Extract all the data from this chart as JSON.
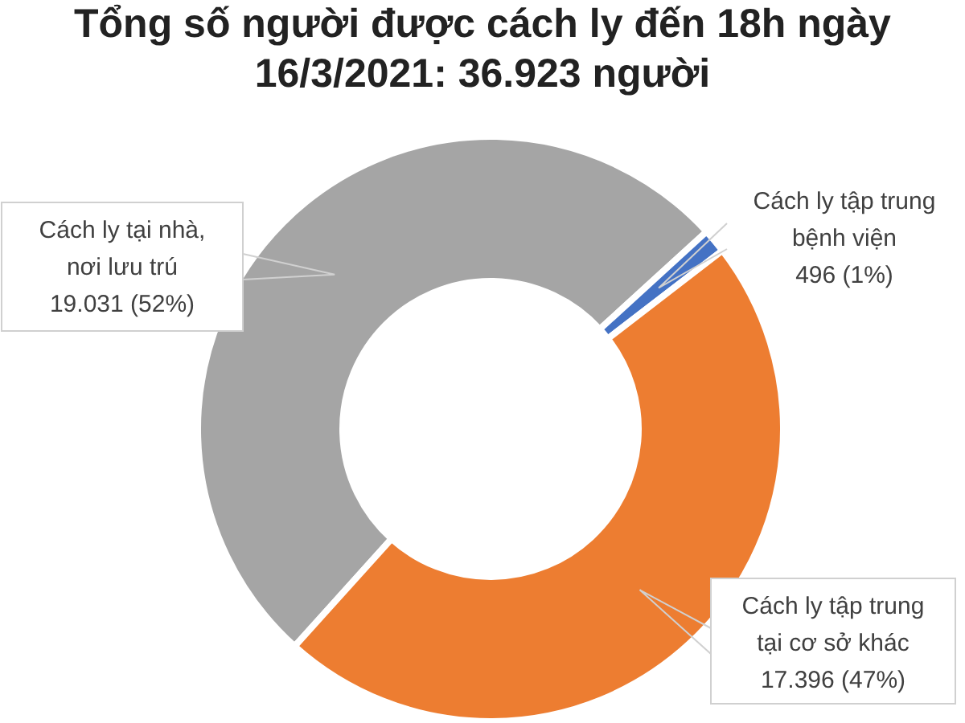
{
  "chart_data": {
    "type": "donut",
    "title": "Tổng số người được cách ly đến 18h ngày\n16/3/2021: 36.923 người",
    "categories": [
      "Cách ly tại nhà,\nnơi lưu trú",
      "Cách ly tập trung\nbệnh viện",
      "Cách ly tập trung\ntại cơ sở khác"
    ],
    "values": [
      19031,
      496,
      17396
    ],
    "colors": [
      "#a5a5a5",
      "#4472c4",
      "#ed7d31"
    ],
    "value_labels": [
      "19.031 (52%)",
      "496 (1%)",
      "17.396 (47%)"
    ]
  }
}
